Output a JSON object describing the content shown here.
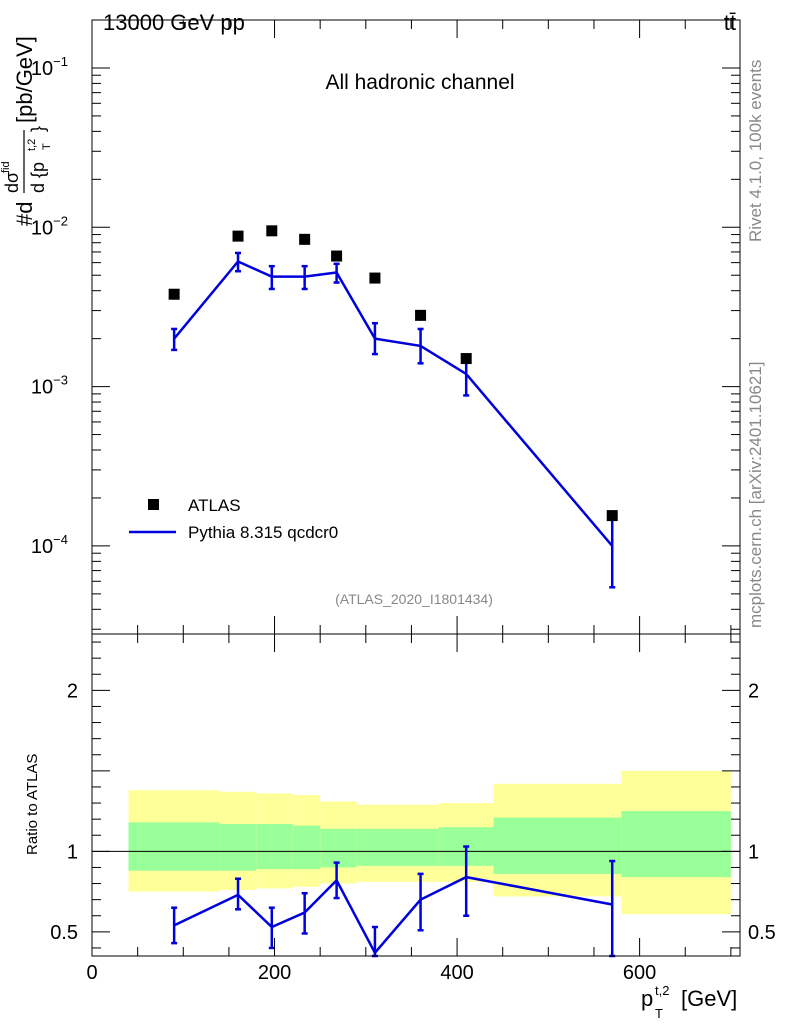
{
  "header": {
    "left": "13000 GeV pp",
    "right": "tt̄"
  },
  "side_labels": {
    "rivet": "Rivet 4.1.0,  100k events",
    "mcplots": "mcplots.cern.ch [arXiv:2401.10621]"
  },
  "colors": {
    "data": "#000000",
    "mc": "#0000dd",
    "band_inner": "#99ff99",
    "band_outer": "#ffff99",
    "watermark": "#888888"
  },
  "chart_data": [
    {
      "type": "scatter",
      "panel": "main",
      "title": "All hadronic channel",
      "watermark": "(ATLAS_2020_I1801434)",
      "ylabel": {
        "prefix": "#d",
        "num": "dσ",
        "num_sup": "fid",
        "den": "d {p",
        "den_sup": "t,2",
        "den_sub": "T",
        "den_close": "}",
        "unit": "[pb/GeV]"
      },
      "yscale": "log",
      "ylim": [
        2.8e-05,
        0.2
      ],
      "xlim": [
        0,
        710
      ],
      "yticks": [
        {
          "value": 0.1,
          "label": "10",
          "exp": "−1"
        },
        {
          "value": 0.01,
          "label": "10",
          "exp": "−2"
        },
        {
          "value": 0.001,
          "label": "10",
          "exp": "−3"
        },
        {
          "value": 0.0001,
          "label": "10",
          "exp": "−4"
        }
      ],
      "legend": {
        "position": "bottom-left",
        "entries": [
          {
            "label": "ATLAS",
            "style": "marker"
          },
          {
            "label": "Pythia 8.315 qcdcr0",
            "style": "line"
          }
        ]
      },
      "series": [
        {
          "name": "ATLAS",
          "x": [
            90,
            160,
            197,
            233,
            268,
            310,
            360,
            410,
            570
          ],
          "y": [
            0.0038,
            0.0088,
            0.0095,
            0.0084,
            0.0066,
            0.0048,
            0.0028,
            0.0015,
            0.000155
          ]
        },
        {
          "name": "Pythia 8.315 qcdcr0",
          "x": [
            90,
            160,
            197,
            233,
            268,
            310,
            360,
            410,
            570
          ],
          "y": [
            0.002,
            0.0061,
            0.0049,
            0.0049,
            0.0052,
            0.002,
            0.0018,
            0.0012,
            0.0001
          ],
          "err_lo": [
            0.0017,
            0.0053,
            0.0041,
            0.0041,
            0.0045,
            0.0016,
            0.0014,
            0.00088,
            5.5e-05
          ],
          "err_hi": [
            0.0023,
            0.0069,
            0.0057,
            0.0057,
            0.0059,
            0.0025,
            0.0023,
            0.0015,
            0.00015
          ]
        }
      ]
    },
    {
      "type": "line",
      "panel": "ratio",
      "ylabel": "Ratio to ATLAS",
      "ylim": [
        0.35,
        2.35
      ],
      "xlim": [
        0,
        710
      ],
      "xlabel": {
        "base": "p",
        "sup": "t,2",
        "sub": "T",
        "unit": "[GeV]"
      },
      "xticks": [
        0,
        200,
        400,
        600
      ],
      "yticks": [
        0.5,
        1,
        2
      ],
      "bands": {
        "edges": [
          40,
          140,
          180,
          220,
          250,
          290,
          380,
          440,
          580,
          700
        ],
        "outer_lo": [
          0.75,
          0.76,
          0.77,
          0.78,
          0.8,
          0.81,
          0.81,
          0.72,
          0.61
        ],
        "outer_hi": [
          1.38,
          1.37,
          1.36,
          1.35,
          1.31,
          1.29,
          1.3,
          1.42,
          1.5
        ],
        "inner_lo": [
          0.88,
          0.88,
          0.89,
          0.89,
          0.9,
          0.91,
          0.91,
          0.86,
          0.84
        ],
        "inner_hi": [
          1.18,
          1.17,
          1.17,
          1.16,
          1.14,
          1.14,
          1.15,
          1.21,
          1.25
        ]
      },
      "series": [
        {
          "name": "Pythia 8.315 qcdcr0",
          "x": [
            90,
            160,
            197,
            233,
            268,
            310,
            360,
            410,
            570
          ],
          "y": [
            0.54,
            0.73,
            0.53,
            0.62,
            0.82,
            0.37,
            0.7,
            0.84,
            0.67
          ],
          "err_lo": [
            0.43,
            0.64,
            0.4,
            0.49,
            0.71,
            0.3,
            0.51,
            0.6,
            0.3
          ],
          "err_hi": [
            0.65,
            0.83,
            0.65,
            0.74,
            0.93,
            0.53,
            0.86,
            1.03,
            0.94
          ]
        }
      ]
    }
  ]
}
